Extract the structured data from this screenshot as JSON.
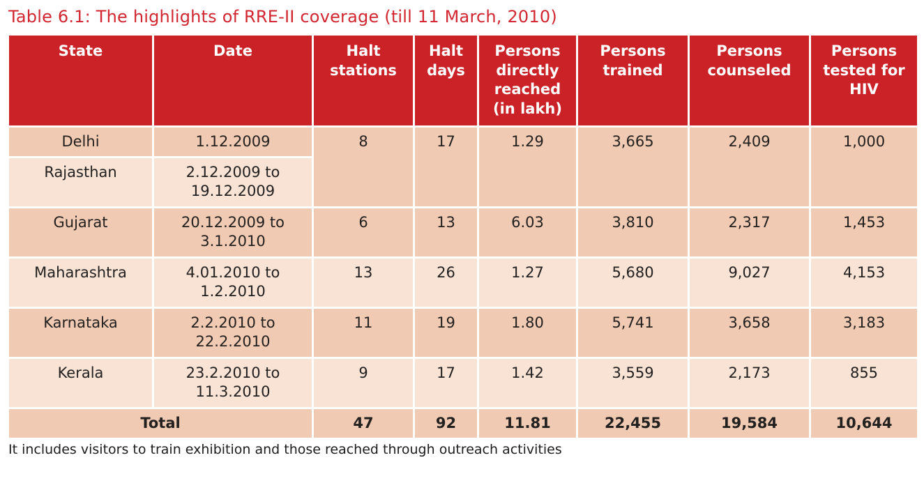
{
  "title": "Table 6.1: The highlights of RRE-II coverage (till 11 March, 2010)",
  "footnote": "It includes visitors to train exhibition and those reached through outreach activities",
  "colors": {
    "header_bg": "#cb2228",
    "title_red": "#d22630",
    "row_dark": "#f0cab2",
    "row_light": "#f8e3d5",
    "header_text": "#ffffff",
    "body_text": "#232020"
  },
  "table": {
    "headers": [
      "State",
      "Date",
      "Halt stations",
      "Halt days",
      "Persons directly reached (in lakh)",
      "Persons trained",
      "Persons counseled",
      "Persons tested for HIV"
    ],
    "rows": [
      {
        "state": "Delhi",
        "date": "1.12.2009",
        "halt_stations": "8",
        "halt_days": "17",
        "reached": "1.29",
        "trained": "3,665",
        "counseled": "2,409",
        "tested": "1,000"
      },
      {
        "state": "Rajasthan",
        "date": "2.12.2009 to 19.12.2009"
      },
      {
        "state": "Gujarat",
        "date": "20.12.2009 to 3.1.2010",
        "halt_stations": "6",
        "halt_days": "13",
        "reached": "6.03",
        "trained": "3,810",
        "counseled": "2,317",
        "tested": "1,453"
      },
      {
        "state": "Maharashtra",
        "date": "4.01.2010 to 1.2.2010",
        "halt_stations": "13",
        "halt_days": "26",
        "reached": "1.27",
        "trained": "5,680",
        "counseled": "9,027",
        "tested": "4,153"
      },
      {
        "state": "Karnataka",
        "date": "2.2.2010 to 22.2.2010",
        "halt_stations": "11",
        "halt_days": "19",
        "reached": "1.80",
        "trained": "5,741",
        "counseled": "3,658",
        "tested": "3,183"
      },
      {
        "state": "Kerala",
        "date": "23.2.2010 to 11.3.2010",
        "halt_stations": "9",
        "halt_days": "17",
        "reached": "1.42",
        "trained": "3,559",
        "counseled": "2,173",
        "tested": "855"
      }
    ],
    "total": {
      "label": "Total",
      "halt_stations": "47",
      "halt_days": "92",
      "reached": "11.81",
      "trained": "22,455",
      "counseled": "19,584",
      "tested": "10,644"
    }
  }
}
